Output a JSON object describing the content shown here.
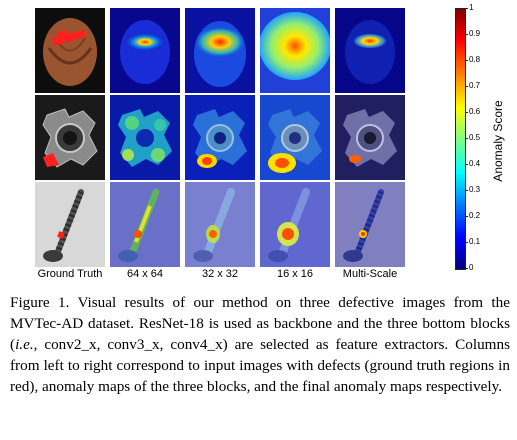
{
  "figure": {
    "column_labels": [
      "Ground Truth",
      "64 x 64",
      "32 x 32",
      "16 x 16",
      "Multi-Scale"
    ],
    "rows": [
      "hazelnut",
      "metal-nut",
      "screw"
    ],
    "colorbar": {
      "title": "Anomaly Score",
      "ticks": [
        "1",
        "0.9",
        "0.8",
        "0.7",
        "0.6",
        "0.5",
        "0.4",
        "0.3",
        "0.2",
        "0.1",
        "0"
      ],
      "min": 0,
      "max": 1,
      "colormap": "jet"
    },
    "defect_color": "#ff2020"
  },
  "caption": {
    "p1": "Figure 1. Visual results of our method on three defective images from the MVTec-AD dataset. ResNet-18 is used as backbone and the three bottom blocks (",
    "ie": "i.e.",
    "p2": ", conv2_x, conv3_x, conv4_x) are selected as feature extractors. Columns from left to right correspond to input images with defects (ground truth regions in red), anomaly maps of the three blocks, and the final anomaly maps respectively."
  }
}
